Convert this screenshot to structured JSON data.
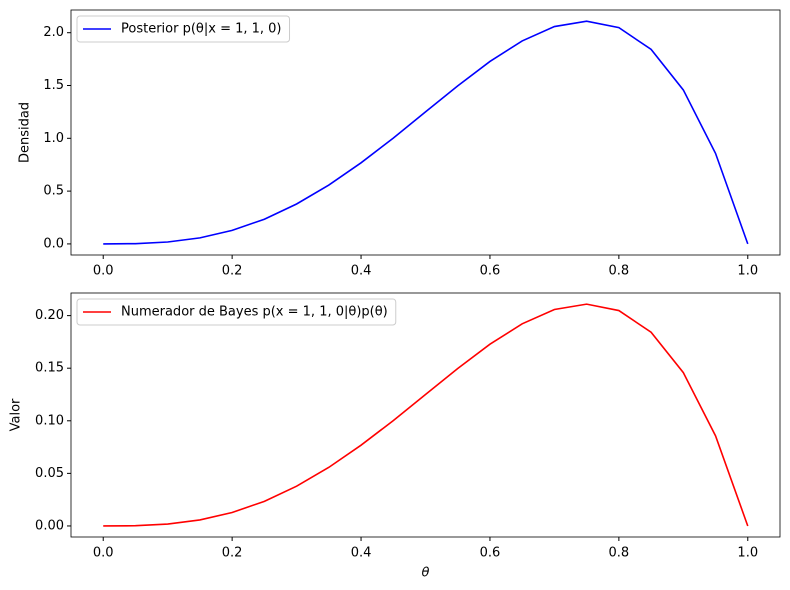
{
  "chart_data": [
    {
      "type": "line",
      "y_label": "Densidad",
      "legend": "upper left",
      "x": [
        0,
        0.05,
        0.1,
        0.15,
        0.2,
        0.25,
        0.3,
        0.35,
        0.4,
        0.45,
        0.5,
        0.55,
        0.6,
        0.65,
        0.7,
        0.75,
        0.8,
        0.85,
        0.9,
        0.95,
        1
      ],
      "series": [
        {
          "name": "Posterior p(θ|x = 1, 1, 0)",
          "color": "#0000ff",
          "values": [
            0,
            0.0024,
            0.018,
            0.057,
            0.128,
            0.234,
            0.378,
            0.557,
            0.768,
            1.002,
            1.25,
            1.497,
            1.728,
            1.922,
            2.058,
            2.109,
            2.048,
            1.842,
            1.458,
            0.857,
            0
          ]
        }
      ],
      "xlim": [
        -0.05,
        1.05
      ],
      "ylim": [
        -0.105,
        2.215
      ],
      "xticks": [
        {
          "value": 0,
          "label": "0.0"
        },
        {
          "value": 0.2,
          "label": "0.2"
        },
        {
          "value": 0.4,
          "label": "0.4"
        },
        {
          "value": 0.6,
          "label": "0.6"
        },
        {
          "value": 0.8,
          "label": "0.8"
        },
        {
          "value": 1,
          "label": "1.0"
        }
      ],
      "yticks": [
        {
          "value": 0,
          "label": "0.0"
        },
        {
          "value": 0.5,
          "label": "0.5"
        },
        {
          "value": 1,
          "label": "1.0"
        },
        {
          "value": 1.5,
          "label": "1.5"
        },
        {
          "value": 2,
          "label": "2.0"
        }
      ]
    },
    {
      "type": "line",
      "y_label": "Valor",
      "x_label": "θ",
      "legend": "upper left",
      "x": [
        0,
        0.05,
        0.1,
        0.15,
        0.2,
        0.25,
        0.3,
        0.35,
        0.4,
        0.45,
        0.5,
        0.55,
        0.6,
        0.65,
        0.7,
        0.75,
        0.8,
        0.85,
        0.9,
        0.95,
        1
      ],
      "series": [
        {
          "name": "Numerador de Bayes p(x = 1, 1, 0|θ)p(θ)",
          "color": "#ff0000",
          "values": [
            0,
            0.00024,
            0.0018,
            0.0057,
            0.0128,
            0.0234,
            0.0378,
            0.0557,
            0.0768,
            0.1002,
            0.125,
            0.1497,
            0.1728,
            0.1922,
            0.2058,
            0.2109,
            0.2048,
            0.1842,
            0.1458,
            0.0857,
            0
          ]
        }
      ],
      "xlim": [
        -0.05,
        1.05
      ],
      "ylim": [
        -0.0105,
        0.2215
      ],
      "xticks": [
        {
          "value": 0,
          "label": "0.0"
        },
        {
          "value": 0.2,
          "label": "0.2"
        },
        {
          "value": 0.4,
          "label": "0.4"
        },
        {
          "value": 0.6,
          "label": "0.6"
        },
        {
          "value": 0.8,
          "label": "0.8"
        },
        {
          "value": 1,
          "label": "1.0"
        }
      ],
      "yticks": [
        {
          "value": 0,
          "label": "0.00"
        },
        {
          "value": 0.05,
          "label": "0.05"
        },
        {
          "value": 0.1,
          "label": "0.10"
        },
        {
          "value": 0.15,
          "label": "0.15"
        },
        {
          "value": 0.2,
          "label": "0.20"
        }
      ]
    }
  ]
}
